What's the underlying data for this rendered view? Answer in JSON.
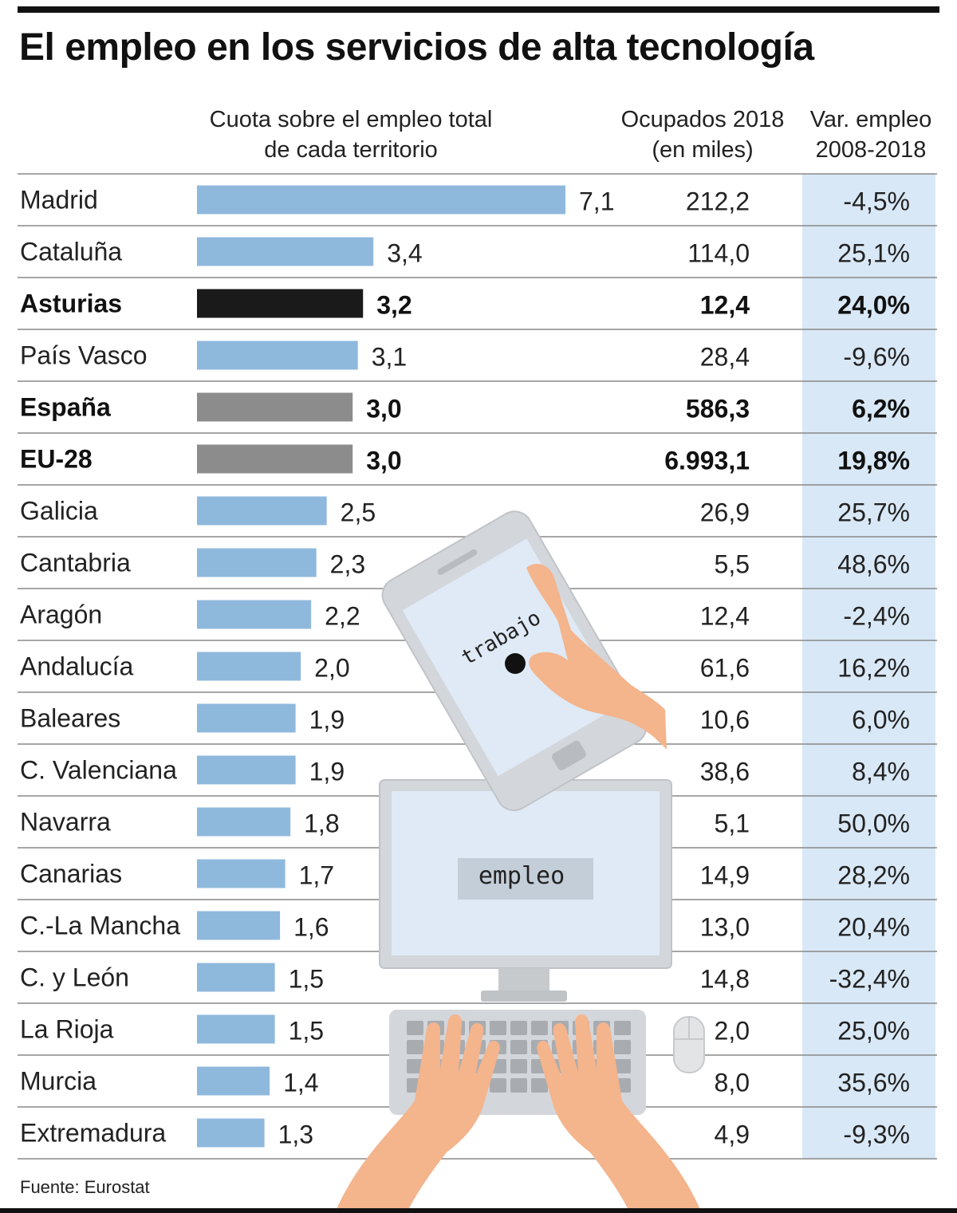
{
  "title": "El empleo en los servicios de alta tecnología",
  "headers": {
    "cuota_line1": "Cuota sobre el empleo total",
    "cuota_line2": "de cada territorio",
    "ocupados_line1": "Ocupados 2018",
    "ocupados_line2": "(en miles)",
    "var_line1": "Var. empleo",
    "var_line2": "2008-2018"
  },
  "illustration": {
    "phone_text": "trabajo",
    "monitor_text": "empleo"
  },
  "source": "Fuente: Eurostat",
  "colors": {
    "default_bar": "#8fb8dd",
    "highlight_bar": "#1a1a1a",
    "aggregate_bar": "#8c8c8c",
    "var_column_bg": "#d9e8f6"
  },
  "chart_data": {
    "type": "bar",
    "orientation": "horizontal",
    "categories": [
      "Madrid",
      "Cataluña",
      "Asturias",
      "País Vasco",
      "España",
      "EU-28",
      "Galicia",
      "Cantabria",
      "Aragón",
      "Andalucía",
      "Baleares",
      "C. Valenciana",
      "Navarra",
      "Canarias",
      "C.-La Mancha",
      "C. y León",
      "La Rioja",
      "Murcia",
      "Extremadura"
    ],
    "series": [
      {
        "name": "Cuota sobre el empleo total de cada territorio",
        "values": [
          7.1,
          3.4,
          3.2,
          3.1,
          3.0,
          3.0,
          2.5,
          2.3,
          2.2,
          2.0,
          1.9,
          1.9,
          1.8,
          1.7,
          1.6,
          1.5,
          1.5,
          1.4,
          1.3
        ],
        "labels": [
          "7,1",
          "3,4",
          "3,2",
          "3,1",
          "3,0",
          "3,0",
          "2,5",
          "2,3",
          "2,2",
          "2,0",
          "1,9",
          "1,9",
          "1,8",
          "1,7",
          "1,6",
          "1,5",
          "1,5",
          "1,4",
          "1,3"
        ]
      }
    ],
    "ocupados_2018": [
      "212,2",
      "114,0",
      "12,4",
      "28,4",
      "586,3",
      "6.993,1",
      "26,9",
      "5,5",
      "12,4",
      "61,6",
      "10,6",
      "38,6",
      "5,1",
      "14,9",
      "13,0",
      "14,8",
      "2,0",
      "8,0",
      "4,9"
    ],
    "var_empleo_2008_2018": [
      "-4,5%",
      "25,1%",
      "24,0%",
      "-9,6%",
      "6,2%",
      "19,8%",
      "25,7%",
      "48,6%",
      "-2,4%",
      "16,2%",
      "6,0%",
      "8,4%",
      "50,0%",
      "28,2%",
      "20,4%",
      "-32,4%",
      "25,0%",
      "35,6%",
      "-9,3%"
    ],
    "highlight": [
      "Asturias"
    ],
    "aggregates": [
      "España",
      "EU-28"
    ],
    "bold_rows": [
      "Asturias",
      "España",
      "EU-28"
    ],
    "xlim": [
      0,
      7.1
    ]
  }
}
